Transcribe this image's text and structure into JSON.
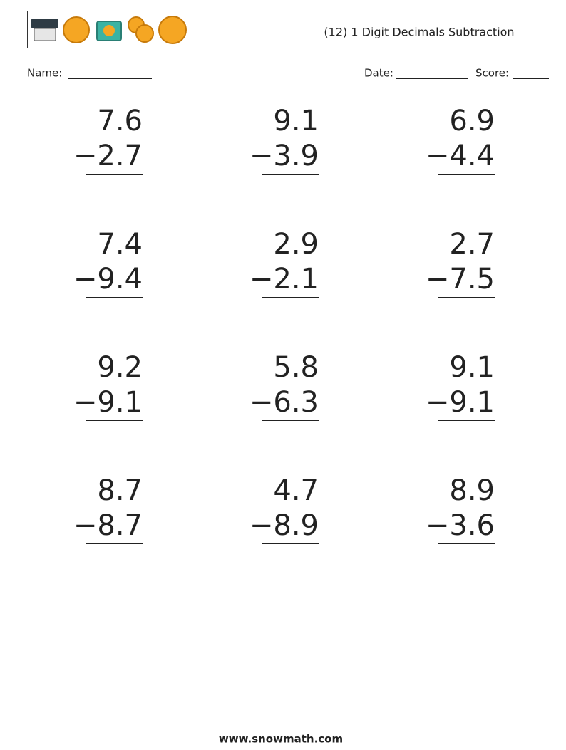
{
  "header": {
    "title": "(12) 1 Digit Decimals Subtraction"
  },
  "fields": {
    "name": "Name:",
    "date": "Date:",
    "score": "Score:"
  },
  "problems": [
    {
      "top": "7.6",
      "bottom": "−2.7"
    },
    {
      "top": "9.1",
      "bottom": "−3.9"
    },
    {
      "top": "6.9",
      "bottom": "−4.4"
    },
    {
      "top": "7.4",
      "bottom": "−9.4"
    },
    {
      "top": "2.9",
      "bottom": "−2.1"
    },
    {
      "top": "2.7",
      "bottom": "−7.5"
    },
    {
      "top": "9.2",
      "bottom": "−9.1"
    },
    {
      "top": "5.8",
      "bottom": "−6.3"
    },
    {
      "top": "9.1",
      "bottom": "−9.1"
    },
    {
      "top": "8.7",
      "bottom": "−8.7"
    },
    {
      "top": "4.7",
      "bottom": "−8.9"
    },
    {
      "top": "8.9",
      "bottom": "−3.6"
    }
  ],
  "footer": {
    "url": "www.snowmath.com"
  }
}
